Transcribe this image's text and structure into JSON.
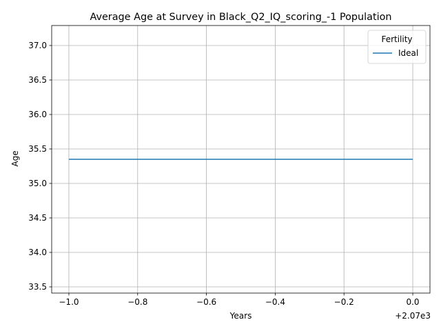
{
  "chart_data": {
    "type": "line",
    "title": "Average Age at Survey in Black_Q2_IQ_scoring_-1 Population",
    "xlabel": "Years",
    "ylabel": "Age",
    "x_offset_label": "+2.07e3",
    "xlim": [
      -1.05,
      0.05
    ],
    "ylim": [
      33.41,
      37.29
    ],
    "x_ticks": [
      -1.0,
      -0.8,
      -0.6,
      -0.4,
      -0.2,
      0.0
    ],
    "x_tick_labels": [
      "−1.0",
      "−0.8",
      "−0.6",
      "−0.4",
      "−0.2",
      "0.0"
    ],
    "y_ticks": [
      33.5,
      34.0,
      34.5,
      35.0,
      35.5,
      36.0,
      36.5,
      37.0
    ],
    "y_tick_labels": [
      "33.5",
      "34.0",
      "34.5",
      "35.0",
      "35.5",
      "36.0",
      "36.5",
      "37.0"
    ],
    "grid": true,
    "legend": {
      "title": "Fertility",
      "placement": "top-right"
    },
    "series": [
      {
        "name": "Ideal",
        "color": "#1f77b4",
        "x": [
          -1.0,
          0.0
        ],
        "y": [
          35.35,
          35.35
        ]
      }
    ]
  }
}
